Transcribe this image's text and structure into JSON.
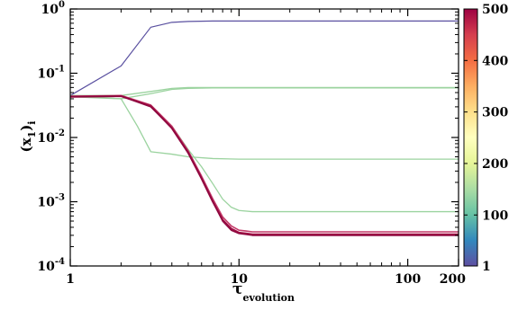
{
  "chart_data": {
    "type": "line",
    "xlabel": "τ",
    "xlabel_sub": "evolution",
    "ylabel": "(x",
    "ylabel_sub1": "1",
    "ylabel_close": ")",
    "ylabel_sub2": "i",
    "xscale": "log",
    "yscale": "log",
    "xlim": [
      1,
      200
    ],
    "ylim": [
      0.0001,
      1
    ],
    "grid": false,
    "x_ticks": [
      {
        "value": 1,
        "label": "1"
      },
      {
        "value": 10,
        "label": "10"
      },
      {
        "value": 100,
        "label": "100"
      },
      {
        "value": 200,
        "label": "200"
      }
    ],
    "y_ticks": [
      {
        "value": 0.0001,
        "base": "10",
        "exp": "-4"
      },
      {
        "value": 0.001,
        "base": "10",
        "exp": "-3"
      },
      {
        "value": 0.01,
        "base": "10",
        "exp": "-2"
      },
      {
        "value": 0.1,
        "base": "10",
        "exp": "-1"
      },
      {
        "value": 1,
        "base": "10",
        "exp": "0"
      }
    ],
    "colorbar": {
      "colormap": "Spectral_r",
      "range": [
        1,
        500
      ],
      "ticks": [
        "1",
        "100",
        "200",
        "300",
        "400",
        "500"
      ],
      "tick_values": [
        1,
        100,
        200,
        300,
        400,
        500
      ],
      "stops": [
        "#5e4fa2",
        "#3288bd",
        "#66c2a5",
        "#abdda4",
        "#e6f598",
        "#ffffbf",
        "#fee08b",
        "#fdae61",
        "#f46d43",
        "#d53e4f",
        "#9e0142"
      ]
    },
    "series": [
      {
        "color": "#5a50a0",
        "width": 1.2,
        "x": [
          1,
          2,
          3,
          4,
          5,
          7,
          10,
          20,
          50,
          100,
          200
        ],
        "y": [
          0.045,
          0.13,
          0.52,
          0.62,
          0.64,
          0.65,
          0.65,
          0.65,
          0.65,
          0.65,
          0.65
        ]
      },
      {
        "color": "#9bd39f",
        "width": 1.3,
        "x": [
          1,
          2,
          3,
          4,
          5,
          7,
          10,
          20,
          50,
          100,
          200
        ],
        "y": [
          0.045,
          0.045,
          0.052,
          0.058,
          0.06,
          0.06,
          0.06,
          0.06,
          0.06,
          0.06,
          0.06
        ]
      },
      {
        "color": "#9bd39f",
        "width": 1.3,
        "x": [
          1,
          2,
          3,
          4,
          5,
          7,
          10,
          20,
          50,
          100,
          200
        ],
        "y": [
          0.043,
          0.04,
          0.048,
          0.056,
          0.058,
          0.059,
          0.059,
          0.059,
          0.059,
          0.059,
          0.059
        ]
      },
      {
        "color": "#9bd39f",
        "width": 1.3,
        "x": [
          1,
          1.5,
          2,
          2.5,
          3,
          4,
          5,
          7,
          10,
          20,
          50,
          100,
          200
        ],
        "y": [
          0.044,
          0.042,
          0.04,
          0.015,
          0.006,
          0.0055,
          0.005,
          0.0047,
          0.0046,
          0.0046,
          0.0046,
          0.0046,
          0.0046
        ]
      },
      {
        "color": "#9bd39f",
        "width": 1.3,
        "x": [
          1,
          2,
          3,
          4,
          5,
          6,
          7,
          8,
          9,
          10,
          12,
          15,
          20,
          50,
          100,
          200
        ],
        "y": [
          0.044,
          0.045,
          0.031,
          0.015,
          0.0065,
          0.0035,
          0.0019,
          0.0011,
          0.00082,
          0.00073,
          0.0007,
          0.0007,
          0.0007,
          0.0007,
          0.0007,
          0.0007
        ]
      },
      {
        "color": "#c43c6a",
        "width": 1.6,
        "x": [
          1,
          2,
          3,
          4,
          5,
          6,
          7,
          8,
          9,
          10,
          11,
          12,
          15,
          20,
          50,
          100,
          200
        ],
        "y": [
          0.044,
          0.045,
          0.032,
          0.015,
          0.0062,
          0.0025,
          0.0011,
          0.00058,
          0.00042,
          0.00036,
          0.00035,
          0.00034,
          0.00034,
          0.00034,
          0.00034,
          0.00034,
          0.00034
        ]
      },
      {
        "color": "#a31045",
        "width": 2.2,
        "x": [
          1,
          2,
          3,
          4,
          5,
          6,
          7,
          8,
          9,
          10,
          11,
          12,
          15,
          20,
          50,
          100,
          200
        ],
        "y": [
          0.043,
          0.044,
          0.031,
          0.014,
          0.0058,
          0.0023,
          0.001,
          0.00052,
          0.00038,
          0.00033,
          0.00032,
          0.00031,
          0.00031,
          0.00031,
          0.00031,
          0.00031,
          0.00031
        ]
      },
      {
        "color": "#8e0840",
        "width": 1.6,
        "x": [
          1,
          2,
          3,
          4,
          5,
          6,
          7,
          8,
          9,
          10,
          11,
          12,
          15,
          20,
          50,
          100,
          200
        ],
        "y": [
          0.043,
          0.044,
          0.03,
          0.014,
          0.0057,
          0.0023,
          0.001,
          0.0005,
          0.00036,
          0.00032,
          0.00031,
          0.0003,
          0.0003,
          0.0003,
          0.0003,
          0.0003,
          0.0003
        ]
      }
    ]
  }
}
